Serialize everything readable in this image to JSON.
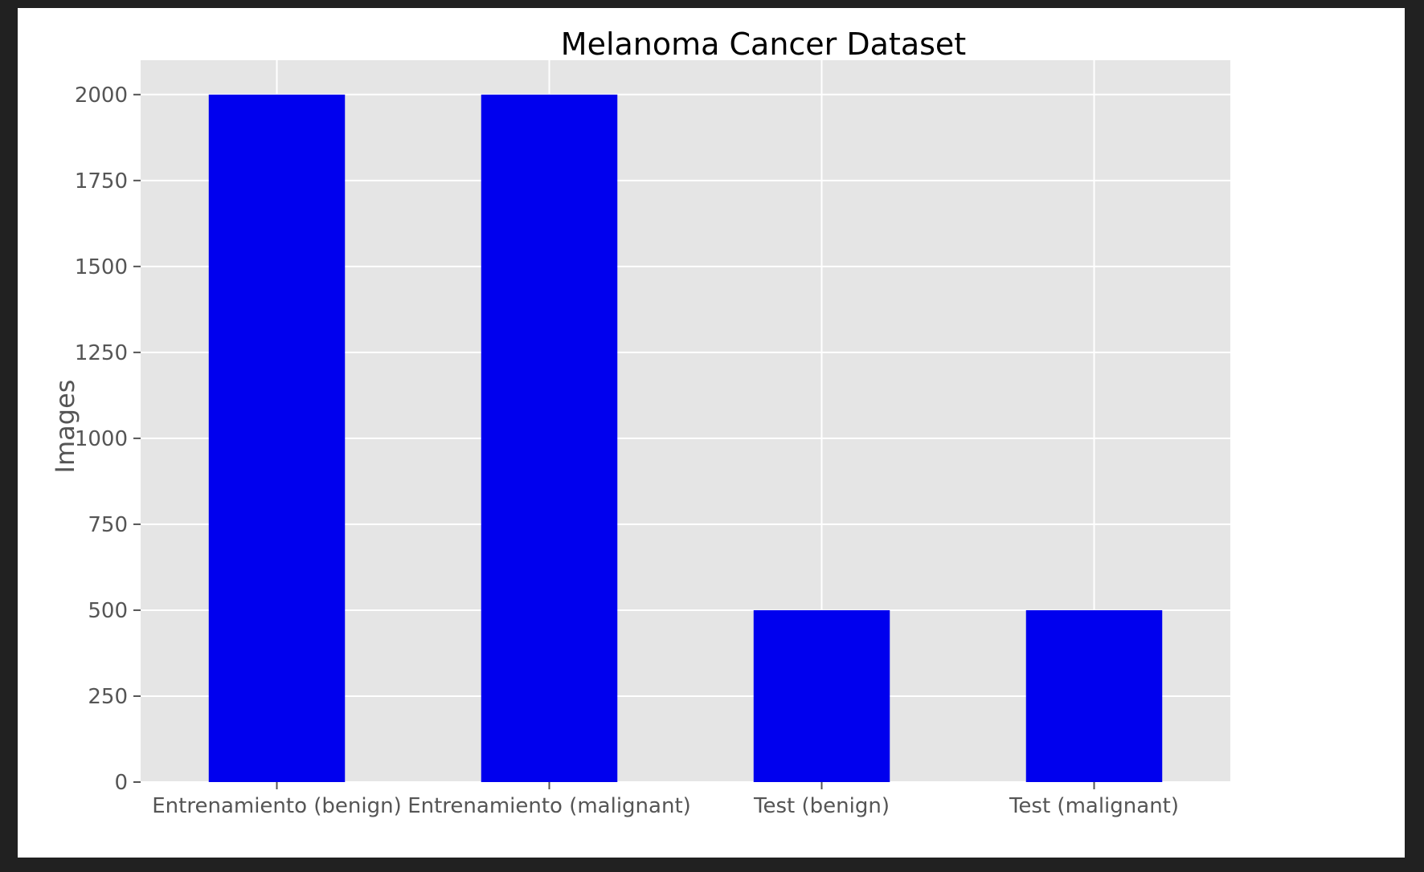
{
  "colors": {
    "background": "#212121",
    "figure": "#ffffff",
    "plot_area": "#e5e5e5",
    "grid": "#ffffff",
    "bar": "#0000ee",
    "tick_text": "#555555",
    "title_text": "#000000"
  },
  "chart_data": {
    "type": "bar",
    "title": "Melanoma Cancer Dataset",
    "xlabel": "",
    "ylabel": "Images",
    "categories": [
      "Entrenamiento (benign)",
      "Entrenamiento (malignant)",
      "Test (benign)",
      "Test (malignant)"
    ],
    "values": [
      2000,
      2000,
      500,
      500
    ],
    "ylim": [
      0,
      2100
    ],
    "yticks": [
      0,
      250,
      500,
      750,
      1000,
      1250,
      1500,
      1750,
      2000
    ],
    "grid": true,
    "legend": "none"
  }
}
